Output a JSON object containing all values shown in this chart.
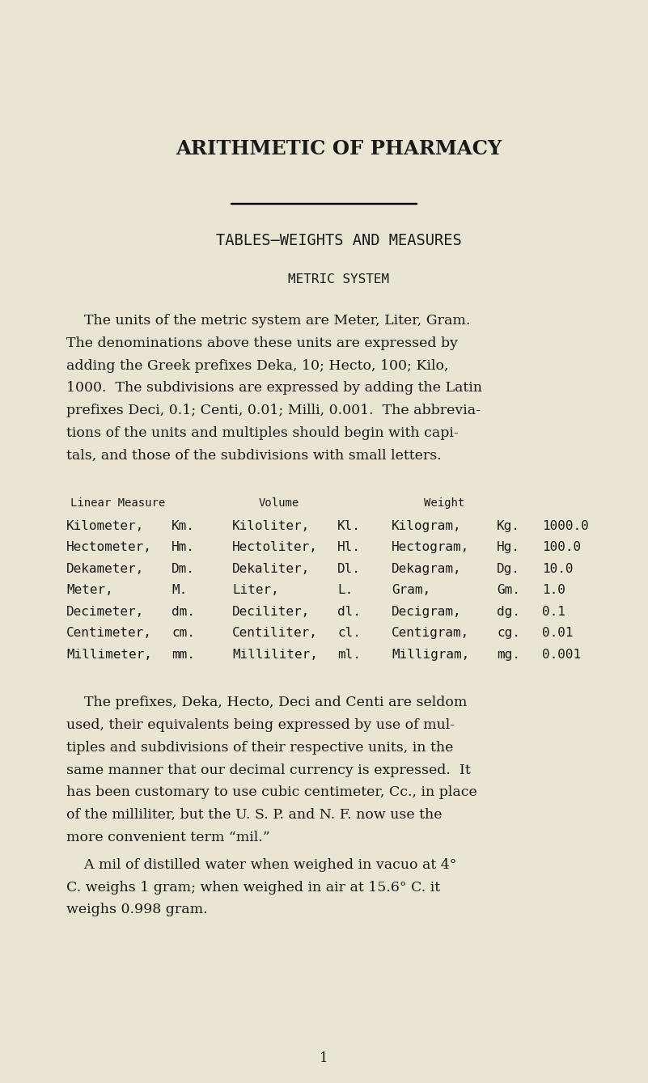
{
  "bg_color": "#EAE4D3",
  "text_color": "#1a1a1a",
  "title": "ARITHMETIC OF PHARMACY",
  "subtitle": "TABLES—WEIGHTS AND MEASURES",
  "section": "METRIC SYSTEM",
  "col_headers": [
    "Linear Measure",
    "Volume",
    "Weight"
  ],
  "table_rows": [
    [
      "Kilometer,",
      "Km.",
      "Kiloliter,",
      "Kl.",
      "Kilogram,",
      "Kg.",
      "1000.0"
    ],
    [
      "Hectometer,",
      "Hm.",
      "Hectoliter,",
      "Hl.",
      "Hectogram,",
      "Hg.",
      "100.0"
    ],
    [
      "Dekameter,",
      "Dm.",
      "Dekaliter,",
      "Dl.",
      "Dekagram,",
      "Dg.",
      "10.0"
    ],
    [
      "Meter,",
      "M.",
      "Liter,",
      "L.",
      "Gram,",
      "Gm.",
      "1.0"
    ],
    [
      "Decimeter,",
      "dm.",
      "Deciliter,",
      "dl.",
      "Decigram,",
      "dg.",
      "0.1"
    ],
    [
      "Centimeter,",
      "cm.",
      "Centiliter,",
      "cl.",
      "Centigram,",
      "cg.",
      "0.01"
    ],
    [
      "Millimeter,",
      "mm.",
      "Milliliter,",
      "ml.",
      "Milligram,",
      "mg.",
      "0.001"
    ]
  ],
  "intro_lines": [
    "    The units of the metric system are Meter, Liter, Gram.",
    "The denominations above these units are expressed by",
    "adding the Greek prefixes Deka, 10; Hecto, 100; Kilo,",
    "1000.  The subdivisions are expressed by adding the Latin",
    "prefixes Deci, 0.1; Centi, 0.01; Milli, 0.001.  The abbrevia-",
    "tions of the units and multiples should begin with capi-",
    "tals, and those of the subdivisions with small letters."
  ],
  "close1_lines": [
    "    The prefixes, Deka, Hecto, Deci and Centi are seldom",
    "used, their equivalents being expressed by use of mul-",
    "tiples and subdivisions of their respective units, in the",
    "same manner that our decimal currency is expressed.  It",
    "has been customary to use cubic centimeter, Cc., in place",
    "of the milliliter, but the U. S. P. and N. F. now use the",
    "more convenient term “mil.”"
  ],
  "close2_lines": [
    "    A mil of distilled water when weighed in vacuo at 4°",
    "C. weighs 1 gram; when weighed in air at 15.6° C. it",
    "weighs 0.998 gram."
  ],
  "page_number": "1",
  "figw": 8.01,
  "figh": 13.39,
  "dpi": 100
}
